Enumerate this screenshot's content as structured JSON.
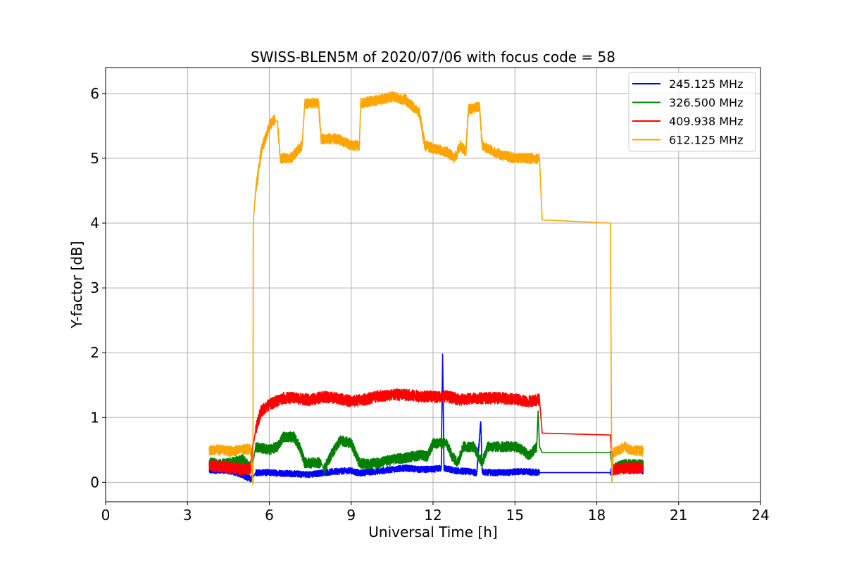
{
  "chart_data": {
    "type": "line",
    "title": "SWISS-BLEN5M of 2020/07/06 with focus code = 58",
    "xlabel": "Universal Time [h]",
    "ylabel": "Y-factor [dB]",
    "xlim": [
      0,
      24
    ],
    "ylim": [
      -0.3,
      6.4
    ],
    "xticks": [
      0,
      3,
      6,
      9,
      12,
      15,
      18,
      21,
      24
    ],
    "yticks": [
      0,
      1,
      2,
      3,
      4,
      5,
      6
    ],
    "grid": true,
    "legend_position": "top-right",
    "series": [
      {
        "name": "245.125 MHz",
        "color": "#0000ff",
        "points": [
          [
            3.8,
            0.18
          ],
          [
            4.2,
            0.19
          ],
          [
            4.6,
            0.17
          ],
          [
            5.0,
            0.12
          ],
          [
            5.3,
            0.05
          ],
          [
            5.4,
            0.07
          ],
          [
            5.5,
            0.15
          ],
          [
            6.0,
            0.15
          ],
          [
            6.5,
            0.14
          ],
          [
            7.0,
            0.13
          ],
          [
            7.5,
            0.12
          ],
          [
            8.0,
            0.15
          ],
          [
            8.5,
            0.17
          ],
          [
            9.0,
            0.18
          ],
          [
            9.3,
            0.14
          ],
          [
            9.6,
            0.16
          ],
          [
            10.0,
            0.17
          ],
          [
            10.5,
            0.2
          ],
          [
            11.0,
            0.22
          ],
          [
            11.5,
            0.2
          ],
          [
            12.0,
            0.2
          ],
          [
            12.3,
            0.22
          ],
          [
            12.35,
            1.98
          ],
          [
            12.4,
            0.22
          ],
          [
            12.8,
            0.18
          ],
          [
            13.2,
            0.17
          ],
          [
            13.6,
            0.15
          ],
          [
            13.75,
            0.93
          ],
          [
            13.8,
            0.16
          ],
          [
            14.2,
            0.15
          ],
          [
            14.7,
            0.15
          ],
          [
            15.2,
            0.17
          ],
          [
            15.5,
            0.16
          ],
          [
            15.9,
            0.15
          ],
          [
            16.0,
            0.15
          ],
          [
            18.5,
            0.15
          ],
          [
            18.6,
            0.2
          ],
          [
            18.8,
            0.25
          ],
          [
            19.0,
            0.3
          ],
          [
            19.2,
            0.2
          ],
          [
            19.7,
            0.18
          ]
        ],
        "noise": 0.05
      },
      {
        "name": "326.500 MHz",
        "color": "#008000",
        "points": [
          [
            3.8,
            0.3
          ],
          [
            4.2,
            0.28
          ],
          [
            4.6,
            0.3
          ],
          [
            5.0,
            0.35
          ],
          [
            5.3,
            0.25
          ],
          [
            5.4,
            0.3
          ],
          [
            5.5,
            0.55
          ],
          [
            6.0,
            0.5
          ],
          [
            6.3,
            0.55
          ],
          [
            6.5,
            0.7
          ],
          [
            6.9,
            0.7
          ],
          [
            7.1,
            0.55
          ],
          [
            7.3,
            0.3
          ],
          [
            7.6,
            0.3
          ],
          [
            7.9,
            0.3
          ],
          [
            8.0,
            0.2
          ],
          [
            8.3,
            0.45
          ],
          [
            8.6,
            0.65
          ],
          [
            9.0,
            0.6
          ],
          [
            9.3,
            0.3
          ],
          [
            9.6,
            0.28
          ],
          [
            10.0,
            0.3
          ],
          [
            10.5,
            0.35
          ],
          [
            11.0,
            0.38
          ],
          [
            11.5,
            0.42
          ],
          [
            11.8,
            0.4
          ],
          [
            12.0,
            0.6
          ],
          [
            12.5,
            0.6
          ],
          [
            12.7,
            0.4
          ],
          [
            12.9,
            0.3
          ],
          [
            13.1,
            0.55
          ],
          [
            13.5,
            0.55
          ],
          [
            13.8,
            0.3
          ],
          [
            14.0,
            0.55
          ],
          [
            14.5,
            0.55
          ],
          [
            15.0,
            0.55
          ],
          [
            15.3,
            0.5
          ],
          [
            15.5,
            0.4
          ],
          [
            15.8,
            0.55
          ],
          [
            15.85,
            1.1
          ],
          [
            15.9,
            0.55
          ],
          [
            16.0,
            0.46
          ],
          [
            18.5,
            0.46
          ],
          [
            18.6,
            0.2
          ],
          [
            19.0,
            0.28
          ],
          [
            19.7,
            0.27
          ]
        ],
        "noise": 0.08
      },
      {
        "name": "409.938 MHz",
        "color": "#ff0000",
        "points": [
          [
            3.8,
            0.25
          ],
          [
            4.2,
            0.25
          ],
          [
            4.6,
            0.22
          ],
          [
            5.0,
            0.2
          ],
          [
            5.3,
            0.2
          ],
          [
            5.4,
            0.55
          ],
          [
            5.5,
            0.8
          ],
          [
            5.7,
            1.1
          ],
          [
            6.0,
            1.2
          ],
          [
            6.5,
            1.3
          ],
          [
            7.0,
            1.3
          ],
          [
            7.5,
            1.27
          ],
          [
            8.0,
            1.32
          ],
          [
            8.5,
            1.3
          ],
          [
            9.0,
            1.25
          ],
          [
            9.5,
            1.28
          ],
          [
            10.0,
            1.33
          ],
          [
            10.5,
            1.35
          ],
          [
            11.0,
            1.35
          ],
          [
            11.5,
            1.33
          ],
          [
            12.0,
            1.32
          ],
          [
            12.5,
            1.33
          ],
          [
            13.0,
            1.27
          ],
          [
            13.5,
            1.3
          ],
          [
            14.0,
            1.3
          ],
          [
            14.5,
            1.3
          ],
          [
            15.0,
            1.28
          ],
          [
            15.5,
            1.25
          ],
          [
            15.9,
            1.28
          ],
          [
            16.0,
            0.76
          ],
          [
            18.5,
            0.73
          ],
          [
            18.6,
            0.2
          ],
          [
            19.0,
            0.22
          ],
          [
            19.7,
            0.22
          ]
        ],
        "noise": 0.09
      },
      {
        "name": "612.125 MHz",
        "color": "#ffa500",
        "points": [
          [
            3.8,
            0.5
          ],
          [
            4.2,
            0.5
          ],
          [
            4.6,
            0.48
          ],
          [
            5.0,
            0.5
          ],
          [
            5.3,
            0.52
          ],
          [
            5.4,
            0.0
          ],
          [
            5.41,
            4.0
          ],
          [
            5.5,
            4.5
          ],
          [
            5.7,
            5.1
          ],
          [
            6.0,
            5.5
          ],
          [
            6.2,
            5.6
          ],
          [
            6.3,
            5.55
          ],
          [
            6.4,
            5.0
          ],
          [
            6.8,
            5.0
          ],
          [
            7.2,
            5.2
          ],
          [
            7.3,
            5.85
          ],
          [
            7.8,
            5.85
          ],
          [
            7.9,
            5.3
          ],
          [
            8.5,
            5.3
          ],
          [
            9.0,
            5.2
          ],
          [
            9.3,
            5.2
          ],
          [
            9.35,
            5.85
          ],
          [
            10.0,
            5.9
          ],
          [
            10.5,
            5.95
          ],
          [
            11.0,
            5.9
          ],
          [
            11.5,
            5.7
          ],
          [
            11.7,
            5.2
          ],
          [
            12.0,
            5.15
          ],
          [
            12.5,
            5.1
          ],
          [
            12.8,
            5.0
          ],
          [
            13.0,
            5.2
          ],
          [
            13.2,
            5.1
          ],
          [
            13.3,
            5.75
          ],
          [
            13.7,
            5.8
          ],
          [
            13.8,
            5.2
          ],
          [
            14.0,
            5.15
          ],
          [
            14.5,
            5.05
          ],
          [
            15.0,
            5.0
          ],
          [
            15.3,
            5.0
          ],
          [
            15.5,
            5.0
          ],
          [
            15.9,
            5.0
          ],
          [
            16.0,
            4.05
          ],
          [
            18.5,
            4.0
          ],
          [
            18.55,
            0.0
          ],
          [
            18.6,
            0.45
          ],
          [
            19.0,
            0.55
          ],
          [
            19.2,
            0.5
          ],
          [
            19.7,
            0.48
          ]
        ],
        "noise": 0.08
      }
    ]
  }
}
